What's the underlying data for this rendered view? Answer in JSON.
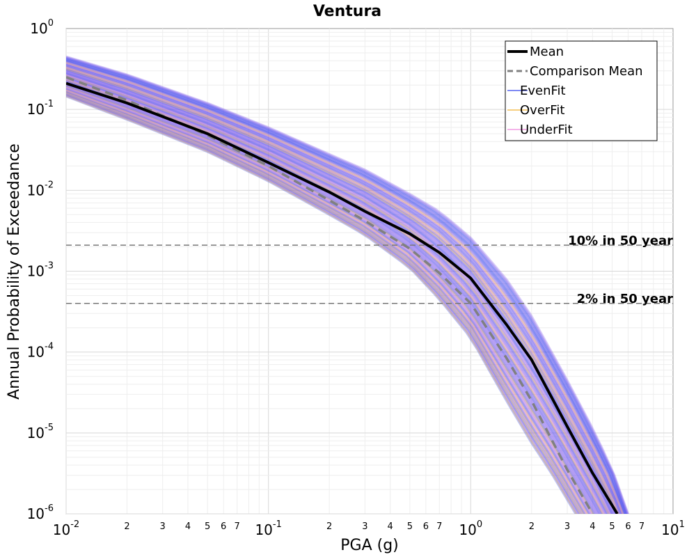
{
  "chart_data": {
    "type": "line",
    "title": "Ventura",
    "xlabel": "PGA (g)",
    "ylabel": "Annual Probability of Exceedance",
    "x_scale": "log",
    "y_scale": "log",
    "xlim": [
      0.01,
      10
    ],
    "ylim": [
      1e-06,
      1
    ],
    "grid": true,
    "legend_position": "top-right",
    "x_ticks": [
      {
        "base": "10",
        "exp": "-2"
      },
      {
        "base": "10",
        "exp": "-1"
      },
      {
        "base": "10",
        "exp": "0"
      },
      {
        "base": "10",
        "exp": "1"
      }
    ],
    "x_minor_labels": [
      "2",
      "3",
      "4",
      "5",
      "6",
      "7"
    ],
    "y_ticks": [
      {
        "base": "10",
        "exp": "0"
      },
      {
        "base": "10",
        "exp": "-1"
      },
      {
        "base": "10",
        "exp": "-2"
      },
      {
        "base": "10",
        "exp": "-3"
      },
      {
        "base": "10",
        "exp": "-4"
      },
      {
        "base": "10",
        "exp": "-5"
      },
      {
        "base": "10",
        "exp": "-6"
      }
    ],
    "mean": {
      "name": "Mean",
      "color": "#000000",
      "x": [
        0.01,
        0.02,
        0.05,
        0.1,
        0.2,
        0.3,
        0.5,
        0.7,
        1.0,
        1.5,
        2.0,
        3.0,
        4.0,
        5.3
      ],
      "y": [
        0.21,
        0.12,
        0.05,
        0.022,
        0.0095,
        0.0055,
        0.0029,
        0.0017,
        0.00082,
        0.00022,
        8e-05,
        1.2e-05,
        3.2e-06,
        1e-06
      ]
    },
    "comparison_mean": {
      "name": "Comparison Mean",
      "color": "#808080",
      "x": [
        0.01,
        0.02,
        0.05,
        0.1,
        0.2,
        0.3,
        0.5,
        0.7,
        1.0,
        1.5,
        2.0,
        3.0,
        4.0
      ],
      "y": [
        0.25,
        0.13,
        0.048,
        0.02,
        0.0075,
        0.0042,
        0.0019,
        0.00095,
        0.0004,
        8.5e-05,
        2.5e-05,
        3.5e-06,
        1e-06
      ]
    },
    "fit_series": [
      {
        "name": "EvenFit",
        "color": "#3344ee"
      },
      {
        "name": "OverFit",
        "color": "#f0b030"
      },
      {
        "name": "UnderFit",
        "color": "#ee88dd"
      }
    ],
    "band_color": "#8866ee",
    "band_upper": {
      "x": [
        0.01,
        0.02,
        0.05,
        0.1,
        0.2,
        0.3,
        0.5,
        0.7,
        1.0,
        1.5,
        2.0,
        3.0,
        4.0,
        5.0,
        6.0
      ],
      "y": [
        0.45,
        0.27,
        0.12,
        0.06,
        0.028,
        0.018,
        0.009,
        0.0055,
        0.0026,
        0.0008,
        0.00028,
        4.5e-05,
        1.15e-05,
        3.6e-06,
        1e-06
      ]
    },
    "band_lower": {
      "x": [
        0.01,
        0.02,
        0.05,
        0.1,
        0.2,
        0.3,
        0.5,
        0.7,
        1.0,
        1.5,
        2.0,
        2.5,
        3.3
      ],
      "y": [
        0.145,
        0.075,
        0.03,
        0.013,
        0.005,
        0.0028,
        0.0011,
        0.00045,
        0.00015,
        2.5e-05,
        7.5e-06,
        3.2e-06,
        1e-06
      ]
    },
    "reference_lines": [
      {
        "label": "10% in 50 year",
        "y": 0.0021
      },
      {
        "label": "2% in 50 year",
        "y": 0.0004
      }
    ]
  }
}
